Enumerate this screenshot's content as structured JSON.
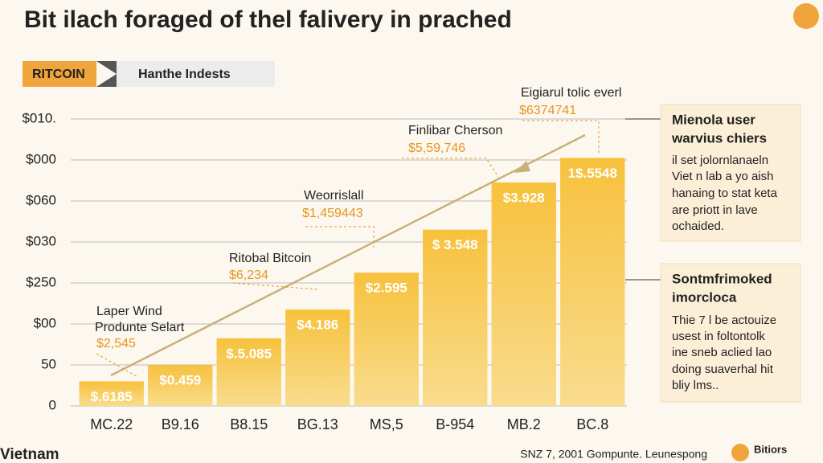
{
  "title": "Bit ilach foraged of thel falivery in prached",
  "tabs": [
    "RITCOIN",
    "Hanthe Indests"
  ],
  "chart_data": {
    "type": "bar",
    "categories": [
      "MC.22",
      "B9.16",
      "B8.15",
      "BG.13",
      "MS,5",
      "B-954",
      "MB.2",
      "BC.8"
    ],
    "values": [
      0.6,
      1.0,
      1.65,
      2.35,
      3.25,
      4.3,
      5.45,
      6.05
    ],
    "bar_texts": [
      "$.6185",
      "$0.459",
      "$.5.085",
      "$4.186",
      "$2.595",
      "$ 3.548",
      "$3.928",
      "1$.5548"
    ],
    "ylim": [
      0,
      7
    ],
    "yticks": [
      {
        "value": 0,
        "label": "0"
      },
      {
        "value": 1,
        "label": "50"
      },
      {
        "value": 2,
        "label": "$00"
      },
      {
        "value": 3,
        "label": "$250"
      },
      {
        "value": 4,
        "label": "$030"
      },
      {
        "value": 5,
        "label": "$060"
      },
      {
        "value": 6,
        "label": "$000"
      },
      {
        "value": 7,
        "label": "$010."
      }
    ],
    "grid": true
  },
  "annotations": [
    {
      "title": "Laper Wind",
      "subtitle": "Produnte Selart",
      "amount": "$2,545"
    },
    {
      "title": "Ritobal Bitcoin",
      "amount": "$6,234"
    },
    {
      "title": "Weorrislall",
      "amount": "$1,459443"
    },
    {
      "title": "Finlibar Cherson",
      "amount": "$5,59,746"
    },
    {
      "title": "Eigiarul tolic everl",
      "amount": "$6374741"
    }
  ],
  "boxes": [
    {
      "heading": [
        "Mienola user",
        "warvius chiers"
      ],
      "lines": [
        "il set jolornlanaeln",
        "Viet n lab a yo aish",
        "hanaing to stat keta",
        "are priott in lave",
        "ochaided."
      ]
    },
    {
      "heading": [
        "Sontmfrimoked",
        "imorcloca"
      ],
      "lines": [
        "Thie 7 l be actouize",
        "usest in foltontolk",
        "ine sneb aclied lao",
        "doing suaverhal hit",
        "bliy lms.."
      ]
    }
  ],
  "footer": {
    "location": "Vietnam",
    "credit": "SNZ 7, 2001 Gompunte. Leunespong",
    "logo": "Bitiors"
  }
}
